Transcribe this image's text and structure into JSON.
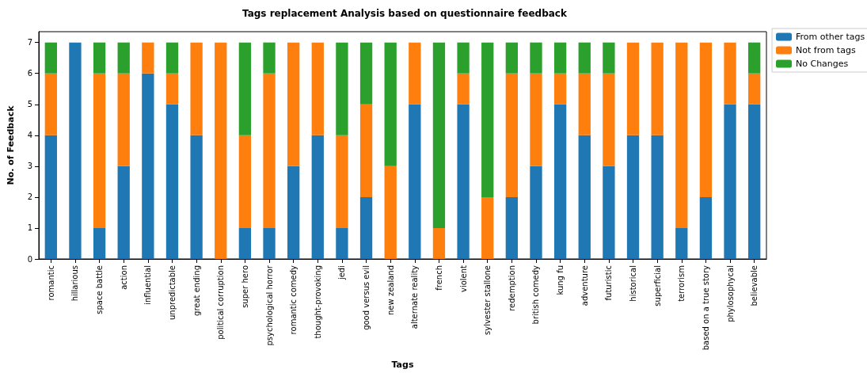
{
  "chart_data": {
    "type": "bar",
    "title": "Tags replacement Analysis based on questionnaire feedback",
    "xlabel": "Tags",
    "ylabel": "No. of Feedback",
    "stacked": true,
    "legend": "top right",
    "grid": false,
    "categories": [
      "romantic",
      "hillarious",
      "space battle",
      "action",
      "influential",
      "unpredictable",
      "great ending",
      "political corruption",
      "super hero",
      "psychological horror",
      "romantic comedy",
      "thought-provoking",
      "jedi",
      "good versus evil",
      "new zealand",
      "alternate reality",
      "french",
      "violent",
      "sylvester stallone",
      "redemption",
      "british comedy",
      "kung fu",
      "adventure",
      "futuristic",
      "historical",
      "superficial",
      "terrorism",
      "based on a true story",
      "phylosophycal",
      "believable"
    ],
    "series": [
      {
        "name": "From other tags",
        "color": "#1f77b4",
        "values": [
          4,
          7,
          1,
          3,
          6,
          5,
          4,
          0,
          1,
          1,
          3,
          4,
          1,
          2,
          0,
          5,
          0,
          5,
          0,
          2,
          3,
          5,
          4,
          3,
          4,
          4,
          1,
          2,
          5,
          5
        ]
      },
      {
        "name": "Not from tags",
        "color": "#ff7f0e",
        "values": [
          2,
          0,
          5,
          3,
          1,
          1,
          3,
          7,
          3,
          5,
          4,
          3,
          3,
          3,
          3,
          2,
          1,
          1,
          2,
          4,
          3,
          1,
          2,
          3,
          3,
          3,
          6,
          5,
          2,
          1
        ]
      },
      {
        "name": "No Changes",
        "color": "#2ca02c",
        "values": [
          1,
          0,
          1,
          1,
          0,
          1,
          0,
          0,
          3,
          1,
          0,
          0,
          3,
          2,
          4,
          0,
          6,
          1,
          5,
          1,
          1,
          1,
          1,
          1,
          0,
          0,
          0,
          0,
          0,
          1
        ]
      }
    ],
    "ylim": [
      0,
      7.35
    ],
    "yticks": [
      0,
      1,
      2,
      3,
      4,
      5,
      6,
      7
    ]
  }
}
